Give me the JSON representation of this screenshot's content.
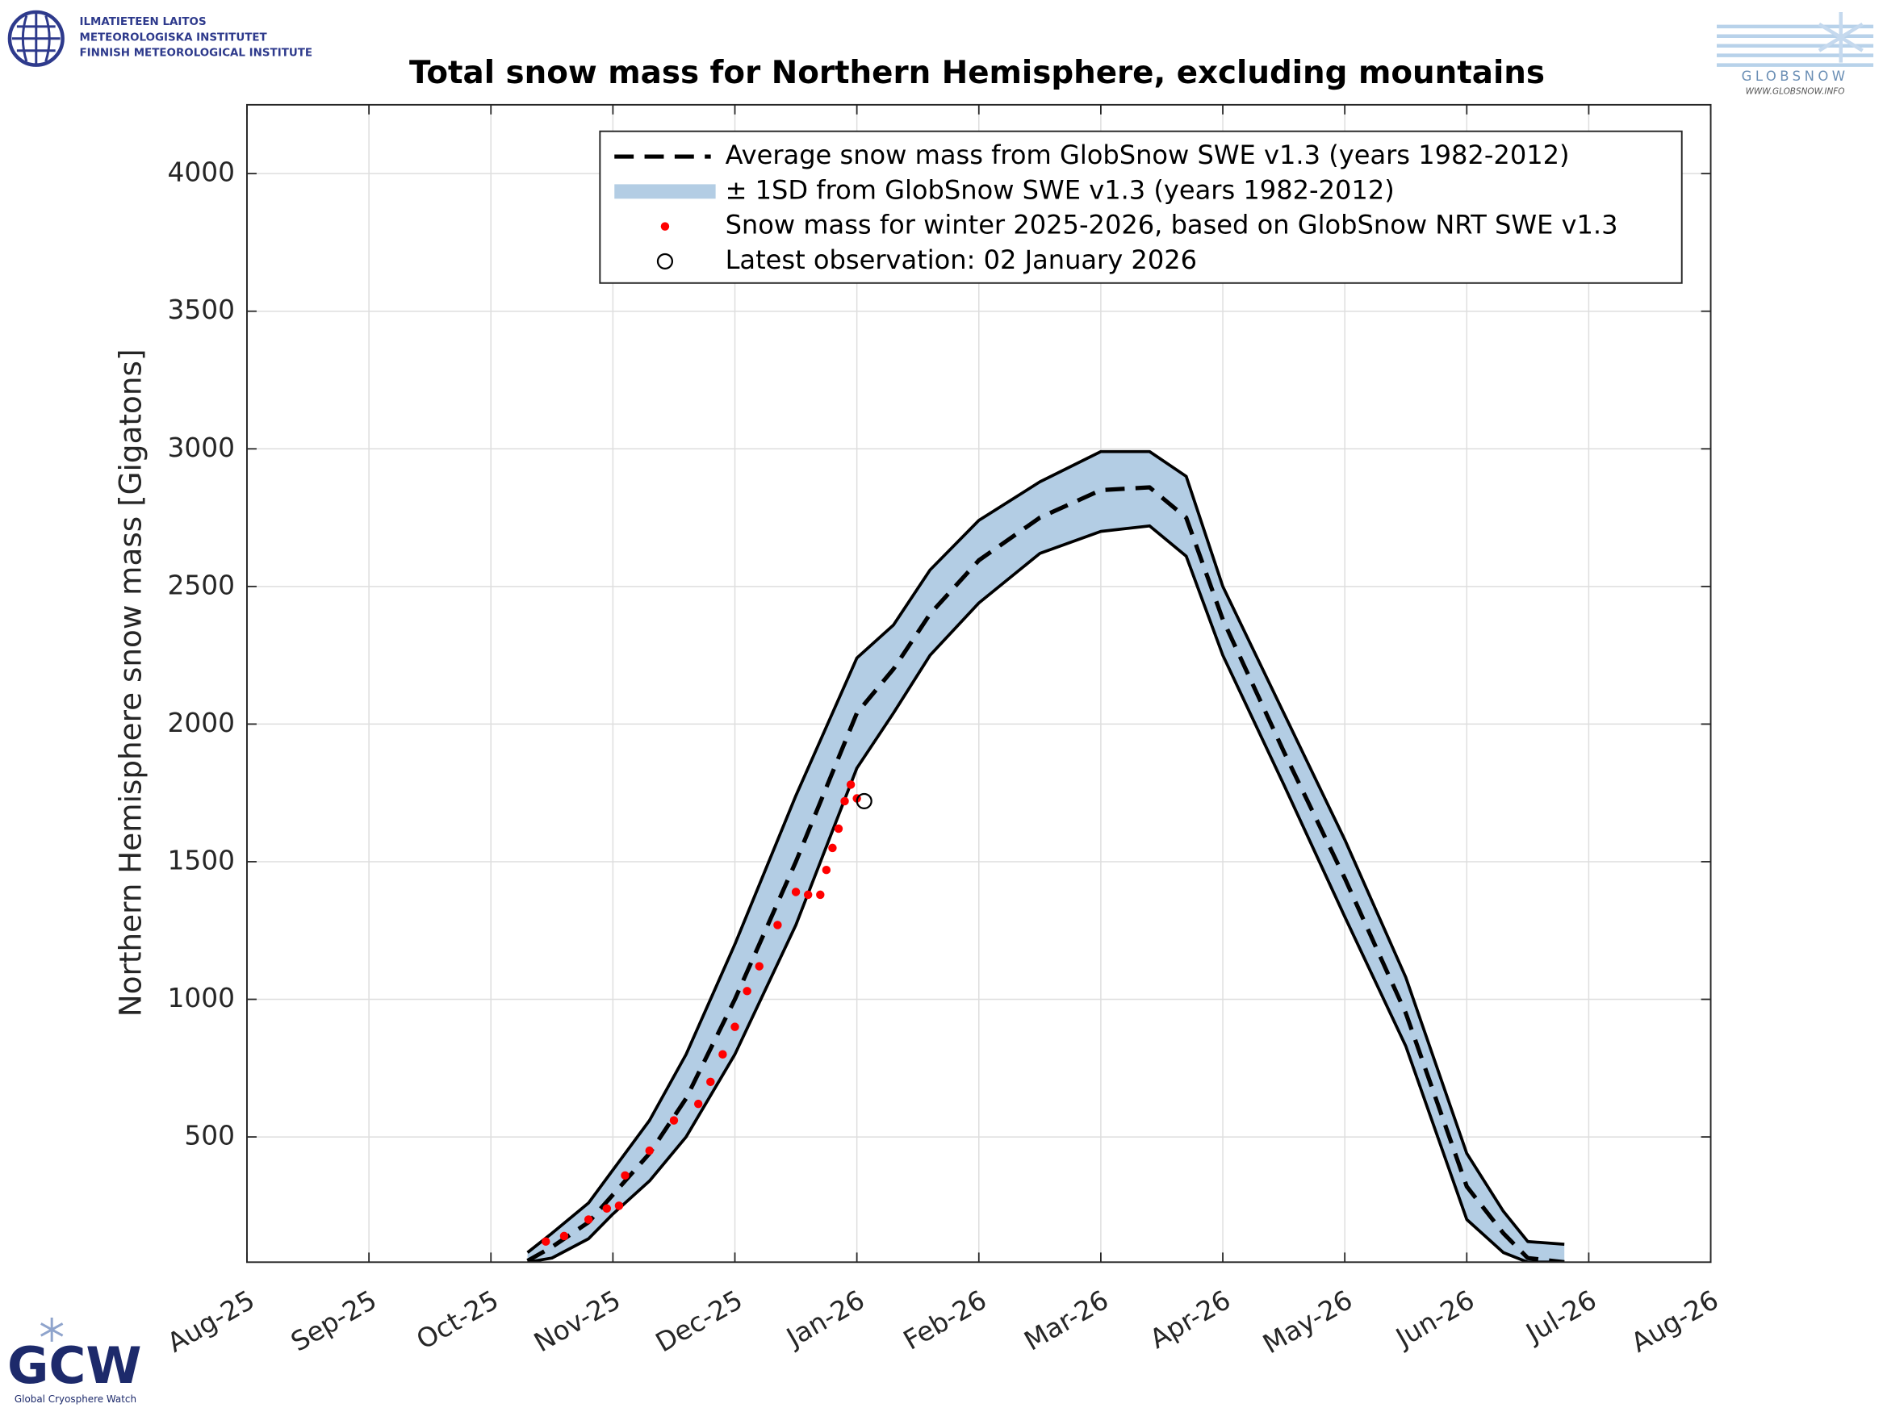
{
  "header": {
    "fmi_lines": [
      "ILMATIETEEN LAITOS",
      "METEOROLOGISKA INSTITUTET",
      "FINNISH METEOROLOGICAL INSTITUTE"
    ],
    "globsnow": "GLOBSNOW",
    "globsnow_url": "WWW.GLOBSNOW.INFO"
  },
  "footer": {
    "gcw": "GCW",
    "gcw_caption": "Global Cryosphere Watch"
  },
  "chart_data": {
    "type": "line",
    "title": "Total snow mass for Northern Hemisphere, excluding mountains",
    "y_label": "Northern Hemisphere snow mass [Gigatons]",
    "xlim": [
      0,
      12
    ],
    "ylim": [
      45,
      4250
    ],
    "xticks": [
      {
        "value": 0,
        "label": "Aug-25"
      },
      {
        "value": 1,
        "label": "Sep-25"
      },
      {
        "value": 2,
        "label": "Oct-25"
      },
      {
        "value": 3,
        "label": "Nov-25"
      },
      {
        "value": 4,
        "label": "Dec-25"
      },
      {
        "value": 5,
        "label": "Jan-26"
      },
      {
        "value": 6,
        "label": "Feb-26"
      },
      {
        "value": 7,
        "label": "Mar-26"
      },
      {
        "value": 8,
        "label": "Apr-26"
      },
      {
        "value": 9,
        "label": "May-26"
      },
      {
        "value": 10,
        "label": "Jun-26"
      },
      {
        "value": 11,
        "label": "Jul-26"
      },
      {
        "value": 12,
        "label": "Aug-26"
      }
    ],
    "yticks": [
      500,
      1000,
      1500,
      2000,
      2500,
      3000,
      3500,
      4000
    ],
    "grid": true,
    "legend": "upper right",
    "x": [
      2.3,
      2.5,
      2.8,
      3.0,
      3.3,
      3.6,
      4.0,
      4.5,
      5.0,
      5.3,
      5.6,
      6.0,
      6.5,
      7.0,
      7.4,
      7.7,
      8.0,
      8.5,
      9.0,
      9.5,
      10.0,
      10.3,
      10.5,
      10.8
    ],
    "series": [
      {
        "name": "Average snow mass from GlobSnow SWE v1.3 (years 1982-2012)",
        "color": "#000000",
        "style": "dashed",
        "values": [
          50,
          100,
          190,
          290,
          440,
          640,
          1000,
          1500,
          2040,
          2200,
          2400,
          2595,
          2750,
          2850,
          2860,
          2750,
          2380,
          1900,
          1440,
          950,
          320,
          150,
          60,
          45
        ]
      },
      {
        "name": "± 1SD from GlobSnow SWE v1.3 (years 1982-2012)",
        "color": "#b3cde4",
        "style": "band",
        "upper": [
          80,
          150,
          260,
          380,
          560,
          800,
          1200,
          1740,
          2240,
          2360,
          2560,
          2740,
          2880,
          2990,
          2990,
          2900,
          2500,
          2040,
          1580,
          1080,
          440,
          230,
          120,
          110
        ],
        "lower": [
          45,
          60,
          130,
          220,
          340,
          500,
          800,
          1270,
          1840,
          2040,
          2250,
          2440,
          2620,
          2700,
          2720,
          2610,
          2250,
          1780,
          1300,
          830,
          200,
          80,
          45,
          45
        ]
      },
      {
        "name": "Snow mass for winter 2025-2026, based on GlobSnow NRT SWE v1.3",
        "color": "#ff0000",
        "style": "dots",
        "x": [
          2.45,
          2.6,
          2.8,
          2.95,
          3.05,
          3.1,
          3.3,
          3.5,
          3.7,
          3.8,
          3.9,
          4.0,
          4.1,
          4.2,
          4.35,
          4.5,
          4.6,
          4.7,
          4.75,
          4.8,
          4.85,
          4.9,
          4.95,
          5.0
        ],
        "values": [
          120,
          140,
          200,
          240,
          250,
          360,
          450,
          560,
          620,
          700,
          800,
          900,
          1030,
          1120,
          1270,
          1390,
          1380,
          1380,
          1470,
          1550,
          1620,
          1720,
          1780,
          1730
        ]
      },
      {
        "name": "Latest observation: 02 January 2026",
        "color": "#000000",
        "style": "circle",
        "x": [
          5.06
        ],
        "values": [
          1720
        ]
      }
    ]
  }
}
